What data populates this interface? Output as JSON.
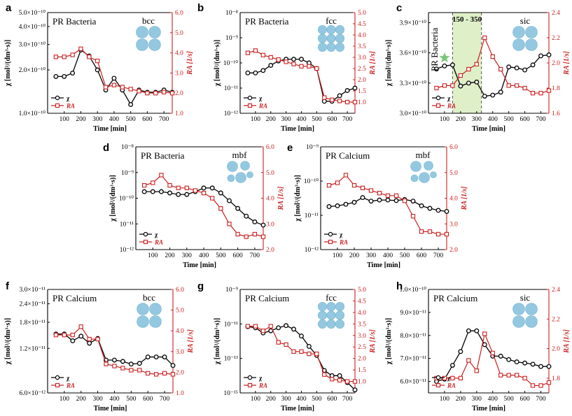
{
  "figure": {
    "background": "#ffffff"
  },
  "style": {
    "chi_color": "#000000",
    "ra_color": "#cc1f1f",
    "sphere_color": "#8fc6e0",
    "highlight_fill": "#dff0c8",
    "star_color": "#7cc576"
  },
  "chart_data": [
    {
      "panel": "a",
      "type": "line",
      "title": "PR Bacteria",
      "structure": "bcc",
      "xlabel": "Time [min]",
      "ylabel_left": "χ [mol²/(dm³·s)]",
      "ylabel_right": "RA [1/s]",
      "xlim": [
        0,
        750
      ],
      "xticks": [
        "100",
        "200",
        "300",
        "400",
        "500",
        "600",
        "700"
      ],
      "left_scale": "log",
      "ylim_left": [
        1e-10,
        5e-10
      ],
      "yticks_left": [
        "1.0×10⁻¹⁰",
        "2.0×10⁻¹⁰",
        "3.0×10⁻¹⁰",
        "4.0×10⁻¹⁰",
        "5.0×10⁻¹⁰"
      ],
      "yticks_left_values": [
        1e-10,
        2e-10,
        3e-10,
        4e-10,
        5e-10
      ],
      "ylim_right": [
        1.0,
        6.0
      ],
      "yticks_right": [
        "1.0",
        "2.0",
        "3.0",
        "4.0",
        "5.0",
        "6.0"
      ],
      "yticks_right_values": [
        1,
        2,
        3,
        4,
        5,
        6
      ],
      "legend": [
        "χ",
        "RA"
      ],
      "series": [
        {
          "name": "χ",
          "axis": "left",
          "x": [
            50,
            100,
            150,
            200,
            250,
            300,
            350,
            400,
            450,
            500,
            550,
            600,
            650,
            700,
            750
          ],
          "values": [
            1.8e-10,
            1.8e-10,
            1.9e-10,
            2.75e-10,
            2.5e-10,
            2e-10,
            1.45e-10,
            1.75e-10,
            1.45e-10,
            1.15e-10,
            1.45e-10,
            1.4e-10,
            1.4e-10,
            1.45e-10,
            1.4e-10
          ]
        },
        {
          "name": "RA",
          "axis": "right",
          "x": [
            50,
            100,
            150,
            200,
            250,
            300,
            350,
            400,
            450,
            500,
            550,
            600,
            650,
            700,
            750
          ],
          "values": [
            3.8,
            3.8,
            3.9,
            4.2,
            3.8,
            3.6,
            2.3,
            2.4,
            2.3,
            2.2,
            2.1,
            2.0,
            2.0,
            2.05,
            2.0
          ]
        }
      ]
    },
    {
      "panel": "b",
      "type": "line",
      "title": "PR Bacteria",
      "structure": "fcc",
      "xlabel": "Time [min]",
      "ylabel_left": "χ [mol²/(dm³·s)]",
      "ylabel_right": "RA [1/s]",
      "xlim": [
        0,
        750
      ],
      "xticks": [
        "100",
        "200",
        "300",
        "400",
        "500",
        "600",
        "700"
      ],
      "left_scale": "log",
      "ylim_left": [
        1e-12,
        1e-08
      ],
      "yticks_left": [
        "10⁻¹²",
        "10⁻¹¹",
        "10⁻¹⁰",
        "10⁻⁹",
        "10⁻⁸"
      ],
      "yticks_left_values": [
        1e-12,
        1e-11,
        1e-10,
        1e-09,
        1e-08
      ],
      "ylim_right": [
        0.5,
        5.0
      ],
      "yticks_right": [
        "1.0",
        "1.5",
        "2.0",
        "2.5",
        "3.0",
        "3.5",
        "4.0",
        "4.5",
        "5.0"
      ],
      "yticks_right_values": [
        1,
        1.5,
        2,
        2.5,
        3,
        3.5,
        4,
        4.5,
        5
      ],
      "legend": [
        "χ",
        "RA"
      ],
      "series": [
        {
          "name": "χ",
          "axis": "left",
          "x": [
            50,
            100,
            150,
            200,
            250,
            300,
            350,
            400,
            450,
            500,
            550,
            600,
            650,
            700,
            750
          ],
          "values": [
            4e-11,
            4e-11,
            5e-11,
            8e-11,
            1.2e-10,
            1.4e-10,
            1.4e-10,
            1.4e-10,
            1e-10,
            6e-11,
            3e-12,
            3e-12,
            5e-12,
            8e-12,
            1e-11
          ]
        },
        {
          "name": "RA",
          "axis": "right",
          "x": [
            50,
            100,
            150,
            200,
            250,
            300,
            350,
            400,
            450,
            500,
            550,
            600,
            650,
            700,
            750
          ],
          "values": [
            3.2,
            3.3,
            3.1,
            3.0,
            2.9,
            2.8,
            2.7,
            2.6,
            2.6,
            2.5,
            1.2,
            1.1,
            1.05,
            1.0,
            1.0
          ]
        }
      ]
    },
    {
      "panel": "c",
      "type": "line",
      "title": "PR Bacteria",
      "structure": "sic",
      "highlight": {
        "label": "150 - 350",
        "x_start": 150,
        "x_end": 330
      },
      "xlabel": "Time [min]",
      "ylabel_left": "χ [mol²/(dm³·s)]",
      "ylabel_right": "RA [1/s]",
      "xlim": [
        0,
        750
      ],
      "xticks": [
        "100",
        "200",
        "300",
        "400",
        "500",
        "600",
        "700"
      ],
      "left_scale": "linear",
      "ylim_left": [
        3e-10,
        4e-10
      ],
      "yticks_left": [
        "3.0×10⁻¹⁰",
        "3.3×10⁻¹⁰",
        "3.6×10⁻¹⁰",
        "3.9×10⁻¹⁰"
      ],
      "yticks_left_values": [
        3e-10,
        3.3e-10,
        3.6e-10,
        3.9e-10
      ],
      "ylim_right": [
        1.6,
        2.4
      ],
      "yticks_right": [
        "1.6",
        "1.8",
        "2.0",
        "2.2",
        "2.4"
      ],
      "yticks_right_values": [
        1.6,
        1.8,
        2.0,
        2.2,
        2.4
      ],
      "star_marker": {
        "x": 100,
        "value": 3.55e-10
      },
      "legend": [
        "χ",
        "RA"
      ],
      "series": [
        {
          "name": "χ",
          "axis": "left",
          "x": [
            50,
            100,
            150,
            200,
            250,
            300,
            350,
            400,
            450,
            500,
            550,
            600,
            650,
            700,
            750
          ],
          "values": [
            3.44e-10,
            3.47e-10,
            3.48e-10,
            3.27e-10,
            3.3e-10,
            3.31e-10,
            3.17e-10,
            3.18e-10,
            3.21e-10,
            3.46e-10,
            3.45e-10,
            3.43e-10,
            3.48e-10,
            3.57e-10,
            3.58e-10
          ]
        },
        {
          "name": "RA",
          "axis": "right",
          "x": [
            50,
            100,
            150,
            200,
            250,
            300,
            350,
            400,
            450,
            500,
            550,
            600,
            650,
            700,
            750
          ],
          "values": [
            1.8,
            1.82,
            1.82,
            1.9,
            1.95,
            1.99,
            2.2,
            2.05,
            1.95,
            1.82,
            1.82,
            1.8,
            1.76,
            1.76,
            1.78
          ]
        }
      ]
    },
    {
      "panel": "d",
      "type": "line",
      "title": "PR Bacteria",
      "structure": "mbf",
      "xlabel": "Time [min]",
      "ylabel_left": "χ [mol²/(dm³·s)]",
      "ylabel_right": "RA [1/s]",
      "xlim": [
        0,
        750
      ],
      "xticks": [
        "100",
        "200",
        "300",
        "400",
        "500",
        "600",
        "700"
      ],
      "left_scale": "log",
      "ylim_left": [
        1e-12,
        1e-08
      ],
      "yticks_left": [
        "10⁻¹²",
        "10⁻¹¹",
        "10⁻¹⁰",
        "10⁻⁹",
        "10⁻⁸"
      ],
      "yticks_left_values": [
        1e-12,
        1e-11,
        1e-10,
        1e-09,
        1e-08
      ],
      "ylim_right": [
        2.0,
        6.0
      ],
      "yticks_right": [
        "2.0",
        "3.0",
        "4.0",
        "5.0",
        "6.0"
      ],
      "yticks_right_values": [
        2,
        3,
        4,
        5,
        6
      ],
      "legend": [
        "χ",
        "RA"
      ],
      "series": [
        {
          "name": "χ",
          "axis": "left",
          "x": [
            50,
            100,
            150,
            200,
            250,
            300,
            350,
            400,
            450,
            500,
            550,
            600,
            650,
            700,
            750
          ],
          "values": [
            1.8e-10,
            1.8e-10,
            1.8e-10,
            1.6e-10,
            1.4e-10,
            1.4e-10,
            1.8e-10,
            2.5e-10,
            2.5e-10,
            1.6e-10,
            8e-11,
            4e-11,
            2e-11,
            1.2e-11,
            9e-12
          ]
        },
        {
          "name": "RA",
          "axis": "right",
          "x": [
            50,
            100,
            150,
            200,
            250,
            300,
            350,
            400,
            450,
            500,
            550,
            600,
            650,
            700,
            750
          ],
          "values": [
            4.5,
            4.6,
            4.9,
            4.5,
            4.4,
            4.4,
            4.3,
            4.2,
            4.0,
            3.6,
            3.0,
            2.6,
            2.5,
            2.6,
            2.5
          ]
        }
      ]
    },
    {
      "panel": "e",
      "type": "line",
      "title": "PR Calcium",
      "structure": "mbf",
      "xlabel": "Time [min]",
      "ylabel_left": "χ [mol²/(dm³·s)]",
      "ylabel_right": "RA [1/s]",
      "xlim": [
        0,
        750
      ],
      "xticks": [
        "100",
        "200",
        "300",
        "400",
        "500",
        "600",
        "700"
      ],
      "left_scale": "log",
      "ylim_left": [
        1e-12,
        1e-09
      ],
      "yticks_left": [
        "10⁻¹²",
        "10⁻¹¹",
        "10⁻¹⁰",
        "10⁻⁹"
      ],
      "yticks_left_values": [
        1e-12,
        1e-11,
        1e-10,
        1e-09
      ],
      "ylim_right": [
        2.0,
        6.0
      ],
      "yticks_right": [
        "2.0",
        "3.0",
        "4.0",
        "5.0",
        "6.0"
      ],
      "yticks_right_values": [
        2,
        3,
        4,
        5,
        6
      ],
      "legend": [
        "χ",
        "RA"
      ],
      "series": [
        {
          "name": "χ",
          "axis": "left",
          "x": [
            50,
            100,
            150,
            200,
            250,
            300,
            350,
            400,
            450,
            500,
            550,
            600,
            650,
            700,
            750
          ],
          "values": [
            1.8e-11,
            1.9e-11,
            2.1e-11,
            2.4e-11,
            3.3e-11,
            2.6e-11,
            2.8e-11,
            2.8e-11,
            2.7e-11,
            2.9e-11,
            2.6e-11,
            1.9e-11,
            1.6e-11,
            1.4e-11,
            1.3e-11
          ]
        },
        {
          "name": "RA",
          "axis": "right",
          "x": [
            50,
            100,
            150,
            200,
            250,
            300,
            350,
            400,
            450,
            500,
            550,
            600,
            650,
            700,
            750
          ],
          "values": [
            4.5,
            4.6,
            4.9,
            4.5,
            4.4,
            4.3,
            4.2,
            4.1,
            4.1,
            3.9,
            3.3,
            2.7,
            2.7,
            2.6,
            2.6
          ]
        }
      ]
    },
    {
      "panel": "f",
      "type": "line",
      "title": "PR Calcium",
      "structure": "bcc",
      "xlabel": "Time [min]",
      "ylabel_left": "χ [mol²/(dm³·s)]",
      "ylabel_right": "RA [1/s]",
      "xlim": [
        0,
        750
      ],
      "xticks": [
        "100",
        "200",
        "300",
        "400",
        "500",
        "600",
        "700"
      ],
      "left_scale": "log",
      "ylim_left": [
        6e-12,
        3e-11
      ],
      "yticks_left": [
        "6.0×10⁻¹²",
        "1.2×10⁻¹¹",
        "1.8×10⁻¹¹",
        "2.4×10⁻¹¹",
        "3.0×10⁻¹¹"
      ],
      "yticks_left_values": [
        6e-12,
        1.2e-11,
        1.8e-11,
        2.4e-11,
        3e-11
      ],
      "ylim_right": [
        1.0,
        6.0
      ],
      "yticks_right": [
        "1.0",
        "2.0",
        "3.0",
        "4.0",
        "5.0",
        "6.0"
      ],
      "yticks_right_values": [
        1,
        2,
        3,
        4,
        5,
        6
      ],
      "legend": [
        "χ",
        "RA"
      ],
      "series": [
        {
          "name": "χ",
          "axis": "left",
          "x": [
            50,
            100,
            150,
            200,
            250,
            300,
            350,
            400,
            450,
            500,
            550,
            600,
            650,
            700,
            750
          ],
          "values": [
            1.5e-11,
            1.5e-11,
            1.35e-11,
            1.45e-11,
            1.3e-11,
            1.4e-11,
            1e-11,
            1e-11,
            9.8e-12,
            9.4e-12,
            9.5e-12,
            1.05e-11,
            1.05e-11,
            1.05e-11,
            9.2e-12
          ]
        },
        {
          "name": "RA",
          "axis": "right",
          "x": [
            50,
            100,
            150,
            200,
            250,
            300,
            350,
            400,
            450,
            500,
            550,
            600,
            650,
            700,
            750
          ],
          "values": [
            3.8,
            3.8,
            3.8,
            4.2,
            3.6,
            3.6,
            2.4,
            2.3,
            2.2,
            2.1,
            2.1,
            1.95,
            1.9,
            1.95,
            1.9
          ]
        }
      ]
    },
    {
      "panel": "g",
      "type": "line",
      "title": "PR Calcium",
      "structure": "fcc",
      "xlabel": "Time [min]",
      "ylabel_left": "χ [mol²/(dm³·s)]",
      "ylabel_right": "RA [1/s]",
      "xlim": [
        0,
        750
      ],
      "xticks": [
        "100",
        "200",
        "300",
        "400",
        "500",
        "600",
        "700"
      ],
      "left_scale": "log",
      "ylim_left": [
        1e-15,
        1e-09
      ],
      "yticks_left": [
        "10⁻¹⁵",
        "10⁻¹³",
        "10⁻¹¹",
        "10⁻⁹"
      ],
      "yticks_left_values": [
        1e-15,
        1e-13,
        1e-11,
        1e-09
      ],
      "ylim_right": [
        0.5,
        5.0
      ],
      "yticks_right": [
        "1.0",
        "1.5",
        "2.0",
        "2.5",
        "3.0",
        "3.5",
        "4.0",
        "4.5",
        "5.0"
      ],
      "yticks_right_values": [
        1,
        1.5,
        2,
        2.5,
        3,
        3.5,
        4,
        4.5,
        5
      ],
      "legend": [
        "χ",
        "RA"
      ],
      "series": [
        {
          "name": "χ",
          "axis": "left",
          "x": [
            50,
            100,
            150,
            200,
            250,
            300,
            350,
            400,
            450,
            500,
            550,
            600,
            650,
            700,
            750
          ],
          "values": [
            7e-12,
            6e-12,
            3e-12,
            4e-12,
            6e-12,
            8e-12,
            5e-12,
            2e-12,
            5e-13,
            1.5e-13,
            2e-14,
            1e-14,
            1e-14,
            4e-15,
            1.5e-15
          ]
        },
        {
          "name": "RA",
          "axis": "right",
          "x": [
            50,
            100,
            150,
            200,
            250,
            300,
            350,
            400,
            450,
            500,
            550,
            600,
            650,
            700,
            750
          ],
          "values": [
            3.4,
            3.4,
            3.2,
            3.4,
            2.7,
            2.6,
            2.3,
            2.3,
            2.2,
            2.2,
            1.3,
            1.1,
            1.05,
            1.0,
            1.0
          ]
        }
      ]
    },
    {
      "panel": "h",
      "type": "line",
      "title": "PR Calcium",
      "structure": "sic",
      "xlabel": "Time [min]",
      "ylabel_left": "χ [mol²/(dm³·s)]",
      "ylabel_right": "RA [1/s]",
      "xlim": [
        0,
        750
      ],
      "xticks": [
        "100",
        "200",
        "300",
        "400",
        "500",
        "600",
        "700"
      ],
      "left_scale": "linear",
      "ylim_left": [
        5.5e-11,
        1e-10
      ],
      "yticks_left": [
        "6.0×10⁻¹¹",
        "7.0×10⁻¹¹",
        "8.0×10⁻¹¹",
        "9.0×10⁻¹¹",
        "1.0×10⁻¹⁰"
      ],
      "yticks_left_values": [
        6e-11,
        7e-11,
        8e-11,
        9e-11,
        1e-10
      ],
      "ylim_right": [
        1.7,
        2.4
      ],
      "yticks_right": [
        "1.8",
        "2.0",
        "2.2",
        "2.4"
      ],
      "yticks_right_values": [
        1.8,
        2.0,
        2.2,
        2.4
      ],
      "legend": [
        "χ",
        "RA"
      ],
      "series": [
        {
          "name": "χ",
          "axis": "left",
          "x": [
            50,
            100,
            150,
            200,
            250,
            300,
            350,
            400,
            450,
            500,
            550,
            600,
            650,
            700,
            750
          ],
          "values": [
            6e-11,
            6.1e-11,
            6.7e-11,
            7.3e-11,
            8.2e-11,
            8.2e-11,
            7.6e-11,
            7.1e-11,
            7.1e-11,
            6.95e-11,
            6.85e-11,
            6.8e-11,
            6.75e-11,
            6.65e-11,
            6.65e-11
          ]
        },
        {
          "name": "RA",
          "axis": "right",
          "x": [
            50,
            100,
            150,
            200,
            250,
            300,
            350,
            400,
            450,
            500,
            550,
            600,
            650,
            700,
            750
          ],
          "values": [
            1.8,
            1.8,
            1.8,
            1.8,
            1.92,
            1.85,
            2.1,
            1.97,
            1.82,
            1.82,
            1.82,
            1.8,
            1.75,
            1.75,
            1.77
          ]
        }
      ]
    }
  ]
}
